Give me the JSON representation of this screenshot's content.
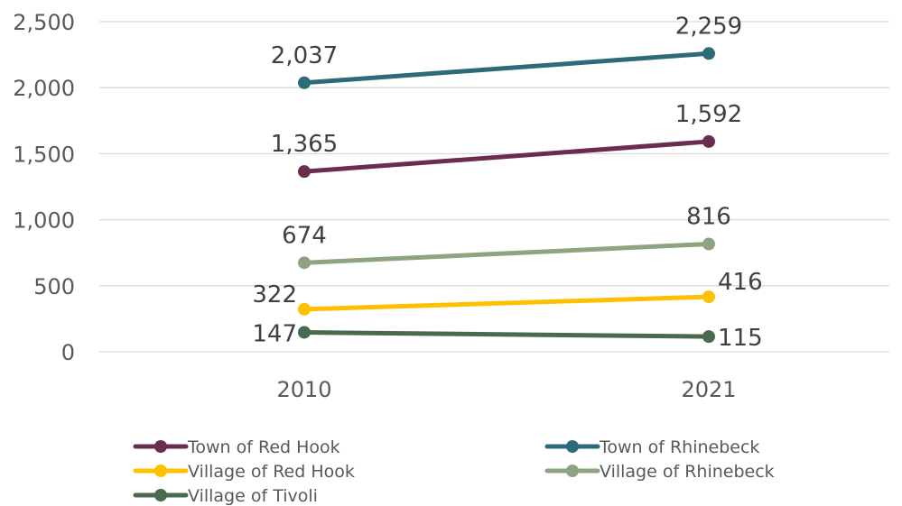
{
  "chart_data": {
    "type": "line",
    "title": "",
    "xlabel": "",
    "ylabel": "",
    "categories": [
      "2010",
      "2021"
    ],
    "ylim": [
      0,
      2500
    ],
    "yticks": [
      "0",
      "500",
      "1,000",
      "1,500",
      "2,000",
      "2,500"
    ],
    "grid": "horizontal",
    "legend_position": "bottom",
    "series": [
      {
        "name": "Town of Red Hook",
        "color": "#6b2d4f",
        "values": [
          1365,
          1592
        ],
        "labels": [
          "1,365",
          "1,592"
        ]
      },
      {
        "name": "Town of Rhinebeck",
        "color": "#2e6b7a",
        "values": [
          2037,
          2259
        ],
        "labels": [
          "2,037",
          "2,259"
        ]
      },
      {
        "name": "Village of Red Hook",
        "color": "#ffc000",
        "values": [
          322,
          416
        ],
        "labels": [
          "322",
          "416"
        ]
      },
      {
        "name": "Village of Rhinebeck",
        "color": "#8ea382",
        "values": [
          674,
          816
        ],
        "labels": [
          "674",
          "816"
        ]
      },
      {
        "name": "Village of Tivoli",
        "color": "#4a6a4e",
        "values": [
          147,
          115
        ],
        "labels": [
          "147",
          "115"
        ]
      }
    ]
  }
}
